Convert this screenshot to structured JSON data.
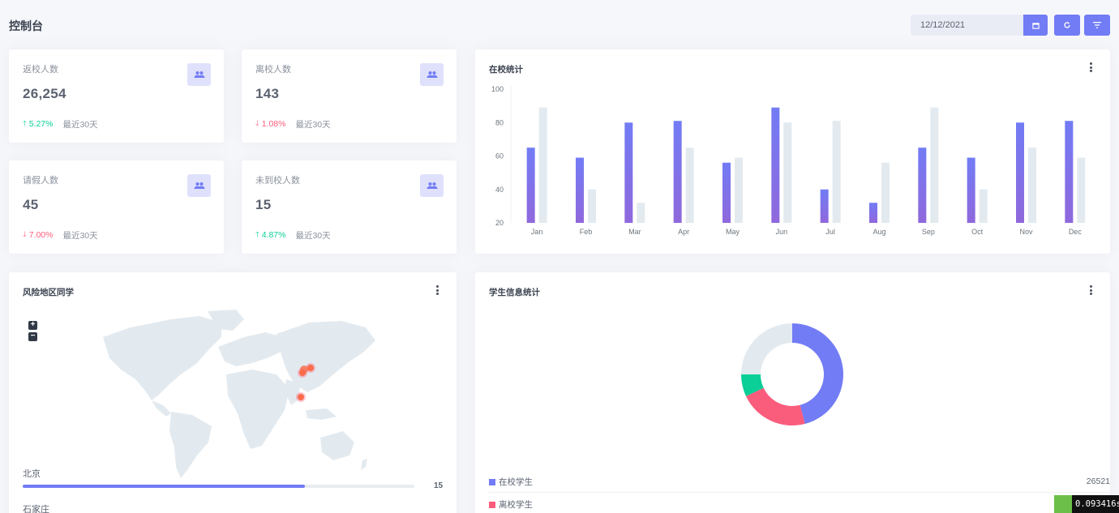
{
  "page": {
    "title": "控制台",
    "date": "12/12/2021"
  },
  "stats": [
    {
      "label": "返校人数",
      "value": "26,254",
      "change": "5.27%",
      "direction": "up",
      "note": "最近30天",
      "icon": "users-icon"
    },
    {
      "label": "离校人数",
      "value": "143",
      "change": "1.08%",
      "direction": "down",
      "note": "最近30天",
      "icon": "users-icon"
    },
    {
      "label": "请假人数",
      "value": "45",
      "change": "7.00%",
      "direction": "down",
      "note": "最近30天",
      "icon": "users-icon"
    },
    {
      "label": "未到校人数",
      "value": "15",
      "change": "4.87%",
      "direction": "up",
      "note": "最近30天",
      "icon": "users-icon"
    }
  ],
  "bar_card": {
    "title": "在校统计"
  },
  "map_card": {
    "title": "风险地区同学",
    "zoom_in": "+",
    "zoom_out": "−",
    "regions": [
      {
        "name": "北京",
        "value": "15",
        "fraction": 0.72
      },
      {
        "name": "石家庄"
      }
    ]
  },
  "donut_card": {
    "title": "学生信息统计",
    "legend": [
      {
        "label": "在校学生",
        "value": "26521",
        "color": "#727cf5"
      },
      {
        "label": "离校学生",
        "color": "#fa5c7c"
      }
    ]
  },
  "timer": {
    "value": "0.093416s"
  },
  "colors": {
    "primary": "#727cf5",
    "secondary": "#e3eaef",
    "success": "#0acf97",
    "danger": "#fa5c7c"
  },
  "chart_data": [
    {
      "type": "bar",
      "title": "在校统计",
      "categories": [
        "Jan",
        "Feb",
        "Mar",
        "Apr",
        "May",
        "Jun",
        "Jul",
        "Aug",
        "Sep",
        "Oct",
        "Nov",
        "Dec"
      ],
      "series": [
        {
          "values": [
            65,
            59,
            80,
            81,
            56,
            89,
            40,
            32,
            65,
            59,
            80,
            81
          ],
          "color": "#727cf5"
        },
        {
          "values": [
            89,
            40,
            32,
            65,
            59,
            80,
            81,
            56,
            89,
            40,
            65,
            59
          ],
          "color": "#e3eaef"
        }
      ],
      "ylim": [
        20,
        100
      ],
      "yticks": [
        "100",
        "80",
        "60",
        "40",
        "20"
      ],
      "grid": false,
      "legend": "none"
    },
    {
      "type": "pie",
      "variant": "donut",
      "slices": [
        {
          "name": "在校学生",
          "value": 46,
          "color": "#727cf5"
        },
        {
          "name": "离校学生",
          "value": 22,
          "color": "#fa5c7c"
        },
        {
          "value": 7,
          "color": "#0acf97"
        },
        {
          "value": 25,
          "color": "#e3eaef"
        }
      ]
    }
  ]
}
